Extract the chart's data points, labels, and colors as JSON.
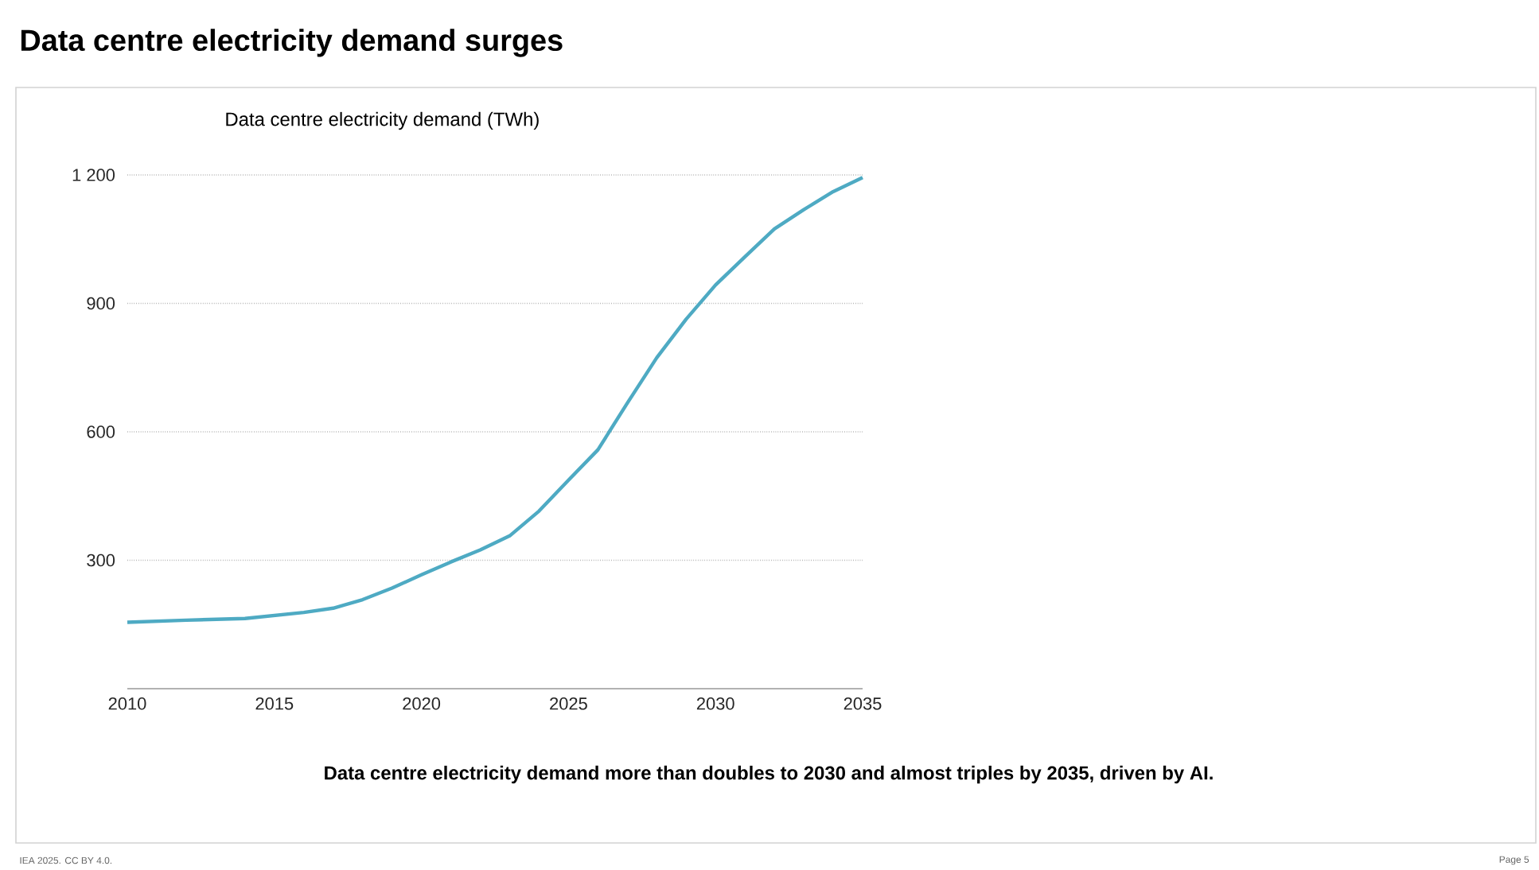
{
  "chart_data": {
    "type": "line",
    "title": "Data centre electricity demand surges",
    "subtitle": "Data centre electricity demand (TWh)",
    "x": [
      2010,
      2012,
      2014,
      2016,
      2017,
      2018,
      2019,
      2020,
      2021,
      2022,
      2023,
      2024,
      2025,
      2026,
      2027,
      2028,
      2029,
      2030,
      2031,
      2032,
      2033,
      2034,
      2035
    ],
    "series": [
      {
        "color": "#4eaac3",
        "values": [
          155,
          160,
          164,
          178,
          188,
          208,
          235,
          266,
          296,
          324,
          357,
          415,
          487,
          558,
          667,
          773,
          863,
          943,
          1009,
          1074,
          1119,
          1161,
          1194
        ]
      }
    ],
    "xlim": [
      2010,
      2035
    ],
    "xticks": [
      2010,
      2015,
      2020,
      2025,
      2030,
      2035
    ],
    "ylim": [
      0,
      1200
    ],
    "yticks": [
      300,
      600,
      900,
      {
        "value": 1200,
        "label": "1 200"
      }
    ],
    "grid": "y",
    "annotations": [
      "Data centre electricity demand more than doubles to 2030 and almost triples by 2035, driven by AI.",
      "IEA 2025. CC BY 4.0.",
      "Page 5"
    ]
  }
}
